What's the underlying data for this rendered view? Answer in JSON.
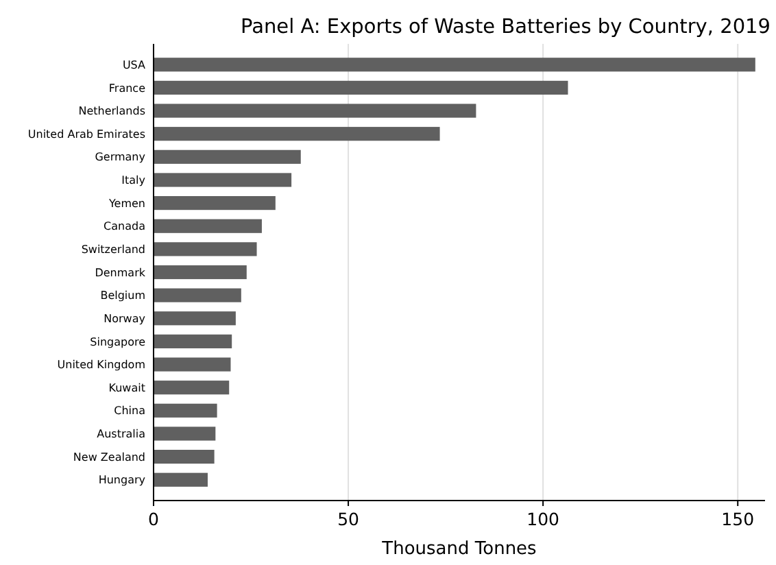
{
  "chart_data": {
    "type": "bar",
    "orientation": "horizontal",
    "title": "Panel A: Exports of Waste Batteries by Country, 2019",
    "xlabel": "Thousand Tonnes",
    "categories": [
      "USA",
      "France",
      "Netherlands",
      "United Arab Emirates",
      "Germany",
      "Italy",
      "Yemen",
      "Canada",
      "Switzerland",
      "Denmark",
      "Belgium",
      "Norway",
      "Singapore",
      "United Kingdom",
      "Kuwait",
      "China",
      "Australia",
      "New Zealand",
      "Hungary"
    ],
    "values": [
      154.5,
      106.4,
      82.8,
      73.5,
      37.8,
      35.4,
      31.3,
      27.8,
      26.5,
      23.9,
      22.5,
      21.1,
      20.1,
      19.8,
      19.4,
      16.3,
      15.9,
      15.6,
      13.9
    ],
    "color": "#606060",
    "xlim": [
      0,
      157
    ],
    "xticks": [
      0,
      50,
      100,
      150
    ],
    "grid": "x"
  }
}
